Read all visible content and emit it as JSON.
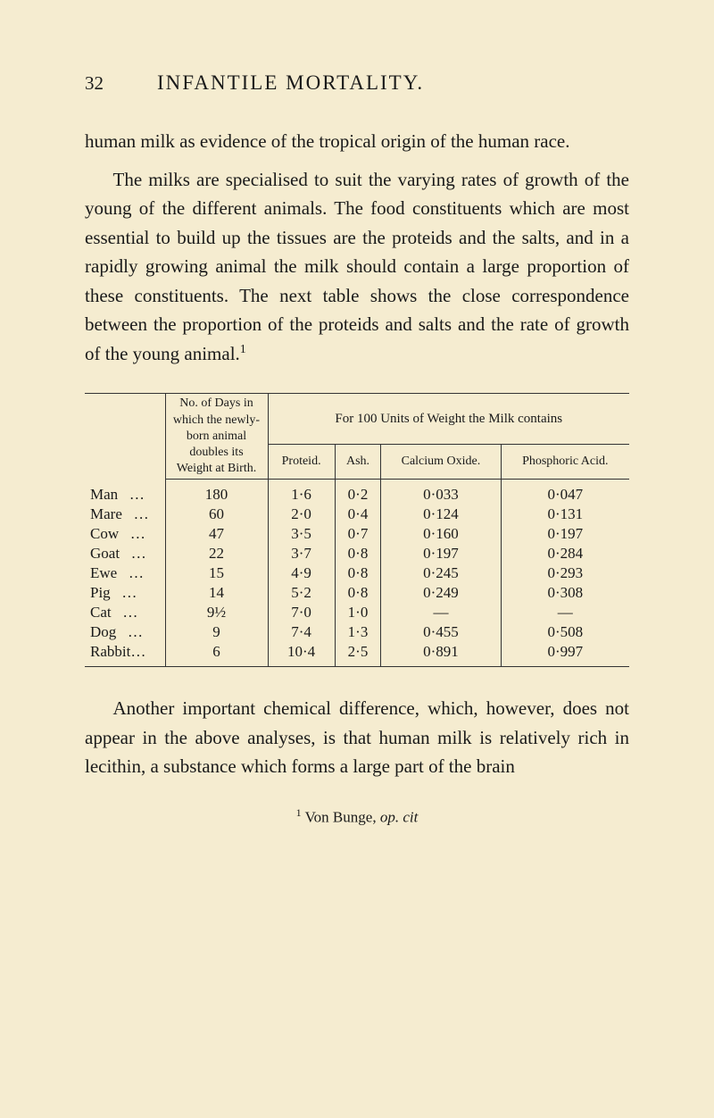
{
  "header": {
    "page_number": "32",
    "title": "INFANTILE MORTALITY."
  },
  "paragraphs": {
    "p1": "human milk as evidence of the tropical origin of the human race.",
    "p2": "The milks are specialised to suit the varying rates of growth of the young of the different animals. The food constituents which are most essential to build up the tissues are the proteids and the salts, and in a rapidly growing animal the milk should contain a large proportion of these constituents. The next table shows the close correspondence between the proportion of the proteids and salts and the rate of growth of the young animal.",
    "p2_ref": "1",
    "p3": "Another important chemical difference, which, however, does not appear in the above analyses, is that human milk is relatively rich in lecithin, a substance which forms a large part of the brain"
  },
  "table": {
    "headers": {
      "days": "No. of Days in which the newly-born animal doubles its Weight at Birth.",
      "spanning": "For 100 Units of Weight the Milk contains",
      "proteid": "Proteid.",
      "ash": "Ash.",
      "calcium": "Calcium Oxide.",
      "phosphoric": "Phosphoric Acid."
    },
    "rows": [
      {
        "animal": "Man",
        "days": "180",
        "proteid": "1·6",
        "ash": "0·2",
        "calcium": "0·033",
        "phosphoric": "0·047"
      },
      {
        "animal": "Mare",
        "days": "60",
        "proteid": "2·0",
        "ash": "0·4",
        "calcium": "0·124",
        "phosphoric": "0·131"
      },
      {
        "animal": "Cow",
        "days": "47",
        "proteid": "3·5",
        "ash": "0·7",
        "calcium": "0·160",
        "phosphoric": "0·197"
      },
      {
        "animal": "Goat",
        "days": "22",
        "proteid": "3·7",
        "ash": "0·8",
        "calcium": "0·197",
        "phosphoric": "0·284"
      },
      {
        "animal": "Ewe",
        "days": "15",
        "proteid": "4·9",
        "ash": "0·8",
        "calcium": "0·245",
        "phosphoric": "0·293"
      },
      {
        "animal": "Pig",
        "days": "14",
        "proteid": "5·2",
        "ash": "0·8",
        "calcium": "0·249",
        "phosphoric": "0·308"
      },
      {
        "animal": "Cat",
        "days": "9½",
        "proteid": "7·0",
        "ash": "1·0",
        "calcium": "—",
        "phosphoric": "—"
      },
      {
        "animal": "Dog",
        "days": "9",
        "proteid": "7·4",
        "ash": "1·3",
        "calcium": "0·455",
        "phosphoric": "0·508"
      },
      {
        "animal": "Rabbit",
        "days": "6",
        "proteid": "10·4",
        "ash": "2·5",
        "calcium": "0·891",
        "phosphoric": "0·997"
      }
    ]
  },
  "footnote": {
    "num": "1",
    "prefix": " Von Bunge, ",
    "italic": "op. cit"
  }
}
